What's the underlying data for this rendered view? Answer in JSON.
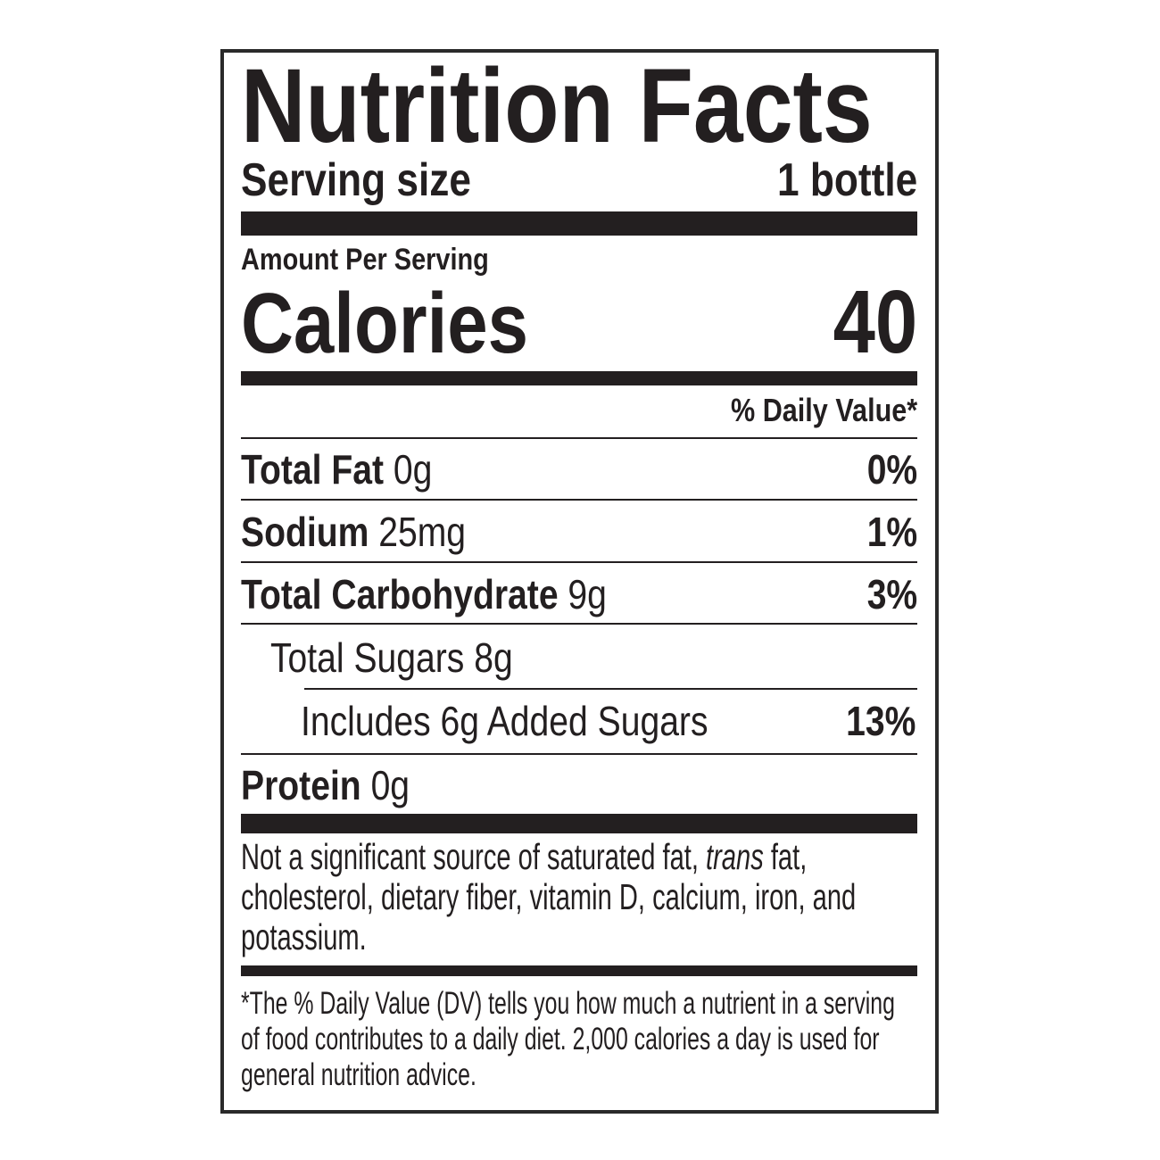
{
  "title": "Nutrition Facts",
  "serving": {
    "label": "Serving size",
    "value": "1 bottle"
  },
  "amount_per_serving": "Amount Per Serving",
  "calories": {
    "label": "Calories",
    "value": "40"
  },
  "daily_value_header": "% Daily Value*",
  "nutrients": [
    {
      "name": "Total Fat",
      "amount": "0g",
      "dv": "0%"
    },
    {
      "name": "Sodium",
      "amount": "25mg",
      "dv": "1%"
    },
    {
      "name": "Total Carbohydrate",
      "amount": "9g",
      "dv": "3%"
    },
    {
      "name": "Total Sugars 8g",
      "amount": "",
      "dv": ""
    },
    {
      "name": "Includes 6g Added Sugars",
      "amount": "",
      "dv": "13%"
    },
    {
      "name": "Protein",
      "amount": "0g",
      "dv": ""
    }
  ],
  "not_significant": {
    "before": "Not a significant source of saturated fat, ",
    "italic": "trans",
    "after": " fat, cholesterol, dietary fiber, vitamin D, calcium, iron, and potassium."
  },
  "footnote": "*The % Daily Value (DV) tells you how much a nutrient in a serving of food contributes to a daily diet. 2,000 calories a day is used for general nutrition advice.",
  "colors": {
    "ink": "#231f20",
    "border": "#2a2a2a"
  }
}
